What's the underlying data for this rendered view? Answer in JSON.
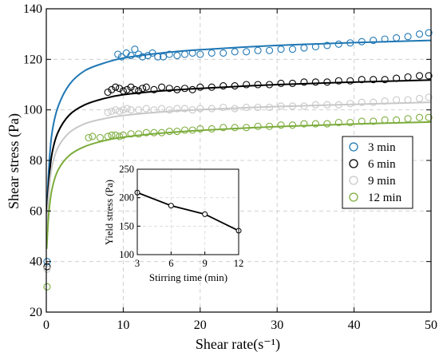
{
  "chart_data": [
    {
      "type": "scatter",
      "xlabel": "Shear rate(s⁻¹)",
      "ylabel": "Shear stress (Pa)",
      "xlim": [
        0,
        50
      ],
      "ylim": [
        20,
        140
      ],
      "x_ticks": [
        "0",
        "10",
        "20",
        "30",
        "40",
        "50"
      ],
      "y_ticks": [
        "20",
        "40",
        "60",
        "80",
        "100",
        "120",
        "140"
      ],
      "grid": true,
      "legend_position": "right",
      "series": [
        {
          "name": "3 min",
          "color": "#1f77b4",
          "points": [
            [
              0.1,
              40
            ],
            [
              9.3,
              122
            ],
            [
              9.8,
              121
            ],
            [
              10.4,
              122.5
            ],
            [
              11,
              121.5
            ],
            [
              11.5,
              124
            ],
            [
              12,
              122
            ],
            [
              12.5,
              121
            ],
            [
              13.2,
              121.5
            ],
            [
              13.8,
              122.5
            ],
            [
              14.5,
              121
            ],
            [
              15.2,
              121
            ],
            [
              16,
              122
            ],
            [
              17,
              121.5
            ],
            [
              18,
              122
            ],
            [
              19,
              122.5
            ],
            [
              20,
              122
            ],
            [
              21.5,
              122.5
            ],
            [
              23,
              122.5
            ],
            [
              24.5,
              123
            ],
            [
              26,
              123
            ],
            [
              27.5,
              123.5
            ],
            [
              29,
              123.5
            ],
            [
              30.5,
              124
            ],
            [
              32,
              124
            ],
            [
              33.5,
              124.5
            ],
            [
              35,
              125
            ],
            [
              36.5,
              125.5
            ],
            [
              38,
              126
            ],
            [
              39.5,
              126.5
            ],
            [
              41,
              127
            ],
            [
              42.5,
              127.5
            ],
            [
              44,
              128
            ],
            [
              45.5,
              128.5
            ],
            [
              47,
              129
            ],
            [
              48.5,
              130
            ],
            [
              49.7,
              130.5
            ]
          ],
          "fit": [
            [
              0.05,
              58
            ],
            [
              0.3,
              75
            ],
            [
              0.7,
              90
            ],
            [
              1.5,
              101
            ],
            [
              3,
              110
            ],
            [
              5,
              115.5
            ],
            [
              7.5,
              118.5
            ],
            [
              10,
              120.5
            ],
            [
              15,
              122.5
            ],
            [
              20,
              123.8
            ],
            [
              30,
              125.5
            ],
            [
              40,
              126.6
            ],
            [
              50,
              127.5
            ]
          ]
        },
        {
          "name": "6 min",
          "color": "#000000",
          "points": [
            [
              0.1,
              38
            ],
            [
              8,
              107
            ],
            [
              8.5,
              108
            ],
            [
              9,
              109
            ],
            [
              9.5,
              108.5
            ],
            [
              10,
              107.5
            ],
            [
              10.5,
              108
            ],
            [
              11,
              109
            ],
            [
              11.5,
              108
            ],
            [
              12,
              107.5
            ],
            [
              12.5,
              108.5
            ],
            [
              13,
              109
            ],
            [
              14,
              108
            ],
            [
              15,
              109
            ],
            [
              16,
              108.5
            ],
            [
              17,
              108
            ],
            [
              18,
              108.5
            ],
            [
              19,
              108
            ],
            [
              20,
              109
            ],
            [
              21.5,
              109
            ],
            [
              23,
              109.5
            ],
            [
              24.5,
              109.5
            ],
            [
              26,
              110
            ],
            [
              27.5,
              110
            ],
            [
              29,
              110
            ],
            [
              30.5,
              110.5
            ],
            [
              32,
              110.5
            ],
            [
              33.5,
              111
            ],
            [
              35,
              111
            ],
            [
              36.5,
              111
            ],
            [
              38,
              111.5
            ],
            [
              39.5,
              111.5
            ],
            [
              41,
              112
            ],
            [
              42.5,
              112
            ],
            [
              44,
              112
            ],
            [
              45.5,
              112.5
            ],
            [
              47,
              113
            ],
            [
              48.5,
              113.5
            ],
            [
              49.7,
              113.5
            ]
          ],
          "fit": [
            [
              0.05,
              55
            ],
            [
              0.3,
              70
            ],
            [
              0.7,
              82
            ],
            [
              1.5,
              91
            ],
            [
              3,
              98
            ],
            [
              5,
              102
            ],
            [
              7.5,
              104.5
            ],
            [
              10,
              106
            ],
            [
              15,
              107.5
            ],
            [
              20,
              108.5
            ],
            [
              30,
              110
            ],
            [
              40,
              111
            ],
            [
              50,
              111.8
            ]
          ]
        },
        {
          "name": "9 min",
          "color": "#c8c8c8",
          "points": [
            [
              0.1,
              37
            ],
            [
              8,
              99
            ],
            [
              8.5,
              99.5
            ],
            [
              9,
              100
            ],
            [
              9.5,
              99.5
            ],
            [
              10,
              100
            ],
            [
              10.5,
              100.5
            ],
            [
              11,
              100
            ],
            [
              12,
              100
            ],
            [
              13,
              100.5
            ],
            [
              14,
              100
            ],
            [
              15,
              100.5
            ],
            [
              16,
              100
            ],
            [
              17,
              100.5
            ],
            [
              18,
              100.5
            ],
            [
              19,
              100
            ],
            [
              20,
              100.5
            ],
            [
              21.5,
              100.5
            ],
            [
              23,
              101
            ],
            [
              24.5,
              100.5
            ],
            [
              26,
              101
            ],
            [
              27.5,
              101
            ],
            [
              29,
              101
            ],
            [
              30.5,
              101.5
            ],
            [
              32,
              101.5
            ],
            [
              33.5,
              101.5
            ],
            [
              35,
              102
            ],
            [
              36.5,
              102
            ],
            [
              38,
              102
            ],
            [
              39.5,
              102.5
            ],
            [
              41,
              103
            ],
            [
              42.5,
              103
            ],
            [
              44,
              103.5
            ],
            [
              45.5,
              104
            ],
            [
              47,
              104
            ],
            [
              48.5,
              104.5
            ],
            [
              49.7,
              105
            ]
          ],
          "fit": [
            [
              0.05,
              52
            ],
            [
              0.3,
              66
            ],
            [
              0.7,
              77
            ],
            [
              1.5,
              85
            ],
            [
              3,
              91
            ],
            [
              5,
              94.5
            ],
            [
              7.5,
              96.5
            ],
            [
              10,
              97.8
            ],
            [
              15,
              99.2
            ],
            [
              20,
              100.1
            ],
            [
              30,
              101.3
            ],
            [
              40,
              102.2
            ],
            [
              50,
              103
            ]
          ]
        },
        {
          "name": "12 min",
          "color": "#7cac3c",
          "points": [
            [
              0.1,
              30
            ],
            [
              5.5,
              89
            ],
            [
              6,
              89.5
            ],
            [
              7,
              89
            ],
            [
              8,
              89.5
            ],
            [
              8.5,
              90
            ],
            [
              9,
              90
            ],
            [
              9.5,
              89.5
            ],
            [
              10,
              90
            ],
            [
              11,
              90.5
            ],
            [
              12,
              90.5
            ],
            [
              13,
              91
            ],
            [
              14,
              91
            ],
            [
              15,
              91
            ],
            [
              16,
              91.5
            ],
            [
              17,
              91.5
            ],
            [
              18,
              92
            ],
            [
              19,
              92
            ],
            [
              20,
              92.5
            ],
            [
              21.5,
              92.5
            ],
            [
              23,
              93
            ],
            [
              24.5,
              93
            ],
            [
              26,
              93
            ],
            [
              27.5,
              93.5
            ],
            [
              29,
              93.5
            ],
            [
              30.5,
              94
            ],
            [
              32,
              94
            ],
            [
              33.5,
              94.5
            ],
            [
              35,
              94.5
            ],
            [
              36.5,
              94.5
            ],
            [
              38,
              95
            ],
            [
              39.5,
              95
            ],
            [
              41,
              95.5
            ],
            [
              42.5,
              95.5
            ],
            [
              44,
              96
            ],
            [
              45.5,
              96
            ],
            [
              47,
              96.5
            ],
            [
              48.5,
              97
            ],
            [
              49.7,
              97
            ]
          ],
          "fit": [
            [
              0.05,
              45
            ],
            [
              0.3,
              58
            ],
            [
              0.7,
              68
            ],
            [
              1.5,
              76
            ],
            [
              3,
              82
            ],
            [
              5,
              85.5
            ],
            [
              7.5,
              87.8
            ],
            [
              10,
              89.2
            ],
            [
              15,
              90.8
            ],
            [
              20,
              91.9
            ],
            [
              30,
              93.4
            ],
            [
              40,
              94.4
            ],
            [
              50,
              95.2
            ]
          ]
        }
      ]
    },
    {
      "type": "line",
      "xlabel": "Stirring time (min)",
      "ylabel": "Yield stress (Pa)",
      "xlim": [
        3,
        12
      ],
      "ylim": [
        100,
        250
      ],
      "x_ticks": [
        "3",
        "6",
        "9",
        "12"
      ],
      "y_ticks": [
        "100",
        "150",
        "200",
        "250"
      ],
      "x": [
        3,
        6,
        9,
        12
      ],
      "values": [
        209,
        186,
        171,
        142
      ]
    }
  ]
}
